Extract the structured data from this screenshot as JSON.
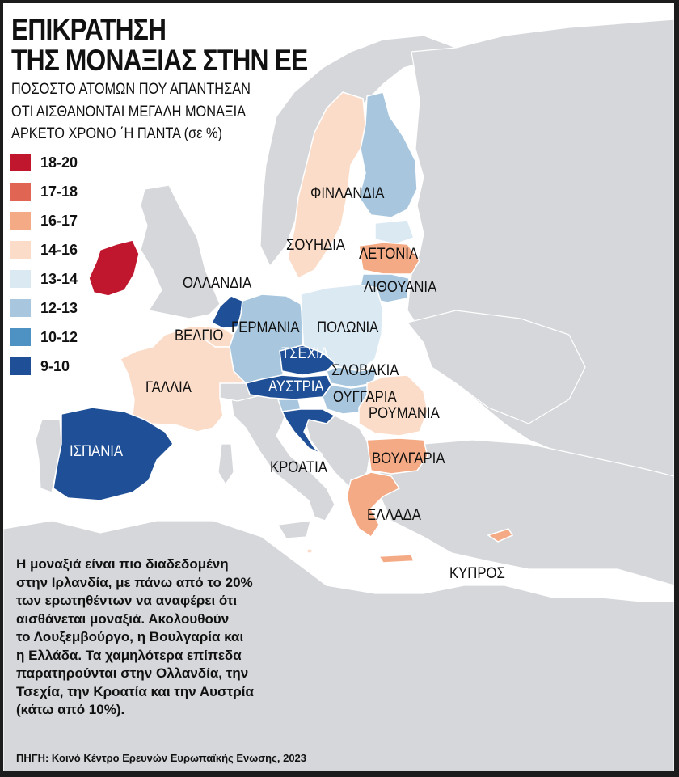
{
  "title_lines": [
    "ΕΠΙΚΡΑΤΗΣΗ",
    "ΤΗΣ ΜΟΝΑΞΙΑΣ ΣΤΗΝ ΕΕ"
  ],
  "subtitle_lines": [
    "ΠΟΣΟΣΤΟ ΑΤΟΜΩΝ ΠΟΥ ΑΠΑΝΤΗΣΑΝ",
    "ΟΤΙ ΑΙΣΘΑΝΟΝΤΑΙ ΜΕΓΑΛΗ ΜΟΝΑΞΙΑ",
    "ΑΡΚΕΤΟ ΧΡΟΝΟ ΄Η ΠΑΝΤΑ (σε %)"
  ],
  "legend": [
    {
      "label": "18-20",
      "color": "#c0172e"
    },
    {
      "label": "17-18",
      "color": "#e06552"
    },
    {
      "label": "16-17",
      "color": "#f4aa84"
    },
    {
      "label": "14-16",
      "color": "#fbdcc8"
    },
    {
      "label": "13-14",
      "color": "#dbe9f3"
    },
    {
      "label": "12-13",
      "color": "#a8c7de"
    },
    {
      "label": "10-12",
      "color": "#4d92c2"
    },
    {
      "label": "9-10",
      "color": "#1f4f96"
    }
  ],
  "countries": {
    "finland": "ΦΙΝΛΑΝΔΙΑ",
    "sweden": "ΣΟΥΗΔΙΑ",
    "latvia": "ΛΕΤΟΝΙΑ",
    "lithuania": "ΛΙΘΟΥΑΝΙΑ",
    "netherlands": "ΟΛΛΑΝΔΙΑ",
    "belgium": "ΒΕΛΓΙΟ",
    "germany": "ΓΕΡΜΑΝΙΑ",
    "poland": "ΠΟΛΩΝΙΑ",
    "czechia": "ΤΣΕΧΙΑ",
    "slovakia": "ΣΛΟΒΑΚΙΑ",
    "austria": "ΑΥΣΤΡΙΑ",
    "hungary": "ΟΥΓΓΑΡΙΑ",
    "france": "ΓΑΛΛΙΑ",
    "romania": "ΡΟΥΜΑΝΙΑ",
    "spain": "ΙΣΠΑΝΙΑ",
    "bulgaria": "ΒΟΥΛΓΑΡΙΑ",
    "croatia": "ΚΡΟΑΤΙΑ",
    "greece": "ΕΛΛΑΔΑ",
    "cyprus": "ΚΥΠΡΟΣ"
  },
  "colors": {
    "water": "#ffffff",
    "land": "#d5d7da",
    "border": "#ffffff",
    "ireland": "#c0172e",
    "finland": "#a8c7de",
    "sweden": "#fbdcc8",
    "estonia": "#dbe9f3",
    "latvia": "#f4aa84",
    "lithuania": "#a8c7de",
    "netherlands": "#1f4f96",
    "belgium": "#fbdcc8",
    "germany": "#a8c7de",
    "poland": "#dbe9f3",
    "czechia": "#1f4f96",
    "slovakia": "#a8c7de",
    "austria": "#1f4f96",
    "hungary": "#a8c7de",
    "france": "#fbdcc8",
    "romania": "#fbdcc8",
    "spain": "#1f4f96",
    "bulgaria": "#f4aa84",
    "croatia": "#1f4f96",
    "greece": "#f4aa84",
    "cyprus": "#f4aa84",
    "italy": "#d5d7da"
  },
  "note_lines": [
    "Η μοναξιά είναι πιο διαδεδομένη",
    "στην Ιρλανδία, με πάνω από το 20%",
    "των ερωτηθέντων να αναφέρει ότι",
    "αισθάνεται μοναξιά. Ακολουθούν",
    "το Λουξεμβούργο, η Βουλγαρία και",
    "η Ελλάδα. Τα χαμηλότερα επίπεδα",
    "παρατηρούνται στην Ολλανδία, την",
    "Τσεχία, την Κροατία και την Αυστρία",
    "(κάτω από 10%)."
  ],
  "source": "ΠΗΓΗ: Κοινό Κέντρο Ερευνών Ευρωπαϊκής Ενωσης, 2023"
}
